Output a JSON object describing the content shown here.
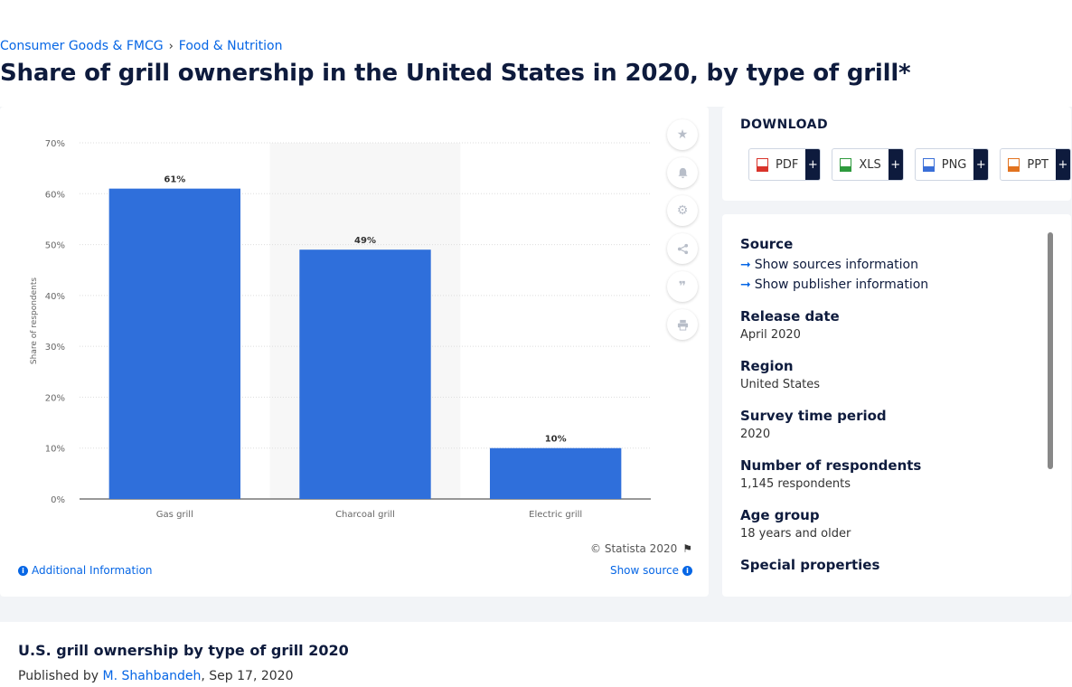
{
  "breadcrumb": {
    "items": [
      "Consumer Goods & FMCG",
      "Food & Nutrition"
    ],
    "separator": "›"
  },
  "page_title": "Share of grill ownership in the United States in 2020, by type of grill*",
  "chart_data": {
    "type": "bar",
    "categories": [
      "Gas grill",
      "Charcoal grill",
      "Electric grill"
    ],
    "values": [
      61,
      49,
      10
    ],
    "data_labels": [
      "61%",
      "49%",
      "10%"
    ],
    "ylabel": "Share of respondents",
    "xlabel": "",
    "ylim": [
      0,
      70
    ],
    "yticks": [
      "0%",
      "10%",
      "20%",
      "30%",
      "40%",
      "50%",
      "60%",
      "70%"
    ],
    "bar_color": "#2f6fdb",
    "grid": true,
    "highlighted_category": "Charcoal grill"
  },
  "chart_footer": {
    "copyright": "© Statista 2020",
    "additional_info": "Additional Information",
    "show_source": "Show source"
  },
  "download": {
    "title": "DOWNLOAD",
    "buttons": [
      {
        "label": "PDF",
        "plus": "+",
        "icon": "pdf-file-icon",
        "color": "#d9342b"
      },
      {
        "label": "XLS",
        "plus": "+",
        "icon": "xls-file-icon",
        "color": "#2e9a3d"
      },
      {
        "label": "PNG",
        "plus": "+",
        "icon": "png-file-icon",
        "color": "#3a6fd8"
      },
      {
        "label": "PPT",
        "plus": "+",
        "icon": "ppt-file-icon",
        "color": "#e2731f"
      }
    ]
  },
  "meta": {
    "source_label": "Source",
    "show_sources": "Show sources information",
    "show_publisher": "Show publisher information",
    "release_date_label": "Release date",
    "release_date": "April 2020",
    "region_label": "Region",
    "region": "United States",
    "survey_period_label": "Survey time period",
    "survey_period": "2020",
    "respondents_label": "Number of respondents",
    "respondents": "1,145 respondents",
    "age_group_label": "Age group",
    "age_group": "18 years and older",
    "special_label": "Special properties"
  },
  "bottom": {
    "title": "U.S. grill ownership by type of grill 2020",
    "published_by": "Published by",
    "author": "M. Shahbandeh",
    "date": ", Sep 17, 2020"
  },
  "tools": [
    "star-icon",
    "bell-icon",
    "gear-icon",
    "share-icon",
    "quote-icon",
    "print-icon"
  ]
}
